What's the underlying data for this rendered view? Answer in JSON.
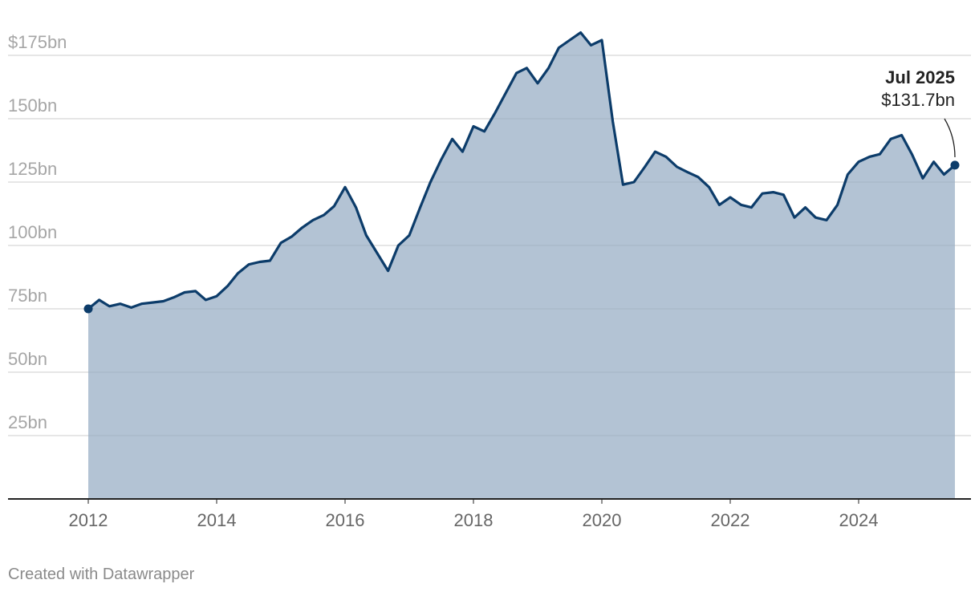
{
  "chart_data": {
    "type": "area",
    "x": [
      2012,
      2012.17,
      2012.33,
      2012.5,
      2012.67,
      2012.83,
      2013,
      2013.17,
      2013.33,
      2013.5,
      2013.67,
      2013.83,
      2014,
      2014.17,
      2014.33,
      2014.5,
      2014.67,
      2014.83,
      2015,
      2015.17,
      2015.33,
      2015.5,
      2015.67,
      2015.83,
      2016,
      2016.17,
      2016.33,
      2016.5,
      2016.67,
      2016.83,
      2017,
      2017.17,
      2017.33,
      2017.5,
      2017.67,
      2017.83,
      2018,
      2018.17,
      2018.33,
      2018.5,
      2018.67,
      2018.83,
      2019,
      2019.17,
      2019.33,
      2019.5,
      2019.67,
      2019.83,
      2020,
      2020.17,
      2020.33,
      2020.5,
      2020.67,
      2020.83,
      2021,
      2021.17,
      2021.33,
      2021.5,
      2021.67,
      2021.83,
      2022,
      2022.17,
      2022.33,
      2022.5,
      2022.67,
      2022.83,
      2023,
      2023.17,
      2023.33,
      2023.5,
      2023.67,
      2023.83,
      2024,
      2024.17,
      2024.33,
      2024.5,
      2024.67,
      2024.83,
      2025,
      2025.17,
      2025.33,
      2025.5
    ],
    "series": [
      {
        "color": "#0c3c6a",
        "fill": "#b3c3d4",
        "values": [
          75,
          78.5,
          76,
          77,
          75.5,
          77,
          77.5,
          78,
          79.5,
          81.5,
          82,
          78.5,
          80,
          84,
          89,
          92.5,
          93.5,
          94,
          101,
          103.5,
          107,
          110,
          112,
          115.5,
          123,
          115,
          104,
          97,
          90,
          100,
          104,
          115,
          125,
          134,
          142,
          137,
          147,
          145,
          152,
          160,
          168,
          170,
          164,
          170,
          178,
          181,
          184,
          179,
          181,
          149,
          124,
          125,
          131,
          137,
          135,
          131,
          129,
          127,
          123,
          116,
          119,
          116,
          115,
          120.5,
          121,
          120,
          111,
          115,
          111,
          110,
          116,
          128,
          133,
          135,
          136,
          142,
          143.5,
          136,
          126.5,
          133,
          128,
          131.7
        ]
      }
    ],
    "xlim": [
      2010.75,
      2025.75
    ],
    "xticks": [
      2012,
      2014,
      2016,
      2018,
      2020,
      2022,
      2024
    ],
    "ylim": [
      0,
      175
    ],
    "yticks": [
      {
        "value": 25,
        "label": "25bn"
      },
      {
        "value": 50,
        "label": "50bn"
      },
      {
        "value": 75,
        "label": "75bn"
      },
      {
        "value": 100,
        "label": "100bn"
      },
      {
        "value": 125,
        "label": "125bn"
      },
      {
        "value": 150,
        "label": "150bn"
      },
      {
        "value": 175,
        "label": "$175bn"
      }
    ],
    "grid": true,
    "annotation": {
      "title": "Jul 2025",
      "text": "$131.7bn"
    },
    "footer": "Created with Datawrapper"
  }
}
